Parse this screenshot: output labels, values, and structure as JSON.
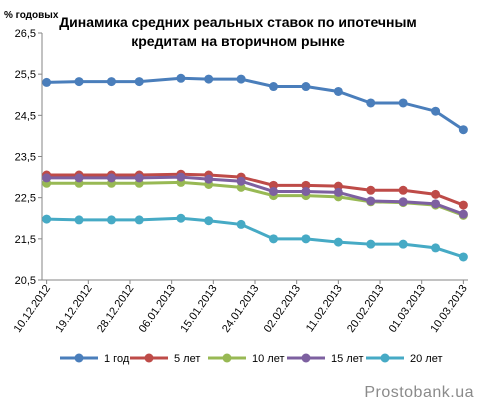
{
  "chart_data": {
    "type": "line",
    "title": [
      "Динамика средних реальных ставок по ипотечным",
      "кредитам на вторичном рынке"
    ],
    "y_label": "% годовых",
    "watermark": "Prostobank.ua",
    "x": [
      0,
      7,
      14,
      20,
      29,
      35,
      42,
      49,
      56,
      63,
      70,
      77,
      84,
      90
    ],
    "xlim": [
      -1,
      91
    ],
    "xticks": [
      {
        "value": 0,
        "label": "10.12.2012"
      },
      {
        "value": 9,
        "label": "19.12.2012"
      },
      {
        "value": 18,
        "label": "28.12.2012"
      },
      {
        "value": 27,
        "label": "06.01.2013"
      },
      {
        "value": 36,
        "label": "15.01.2013"
      },
      {
        "value": 45,
        "label": "24.01.2013"
      },
      {
        "value": 54,
        "label": "02.02.2013"
      },
      {
        "value": 63,
        "label": "11.02.2013"
      },
      {
        "value": 72,
        "label": "20.02.2013"
      },
      {
        "value": 81,
        "label": "01.03.2013"
      },
      {
        "value": 90,
        "label": "10.03.2013"
      }
    ],
    "ylim": [
      20.5,
      26.5
    ],
    "yticks": [
      {
        "value": 20.5,
        "label": "20,5"
      },
      {
        "value": 21.5,
        "label": "21,5"
      },
      {
        "value": 22.5,
        "label": "22,5"
      },
      {
        "value": 23.5,
        "label": "23,5"
      },
      {
        "value": 24.5,
        "label": "24,5"
      },
      {
        "value": 25.5,
        "label": "25,5"
      },
      {
        "value": 26.5,
        "label": "26,5"
      }
    ],
    "grid": false,
    "legend": "bottom",
    "series": [
      {
        "name": "1 год",
        "color": "#4a7ebb",
        "values": [
          25.3,
          25.32,
          25.32,
          25.32,
          25.4,
          25.38,
          25.38,
          25.2,
          25.2,
          25.08,
          24.8,
          24.8,
          24.6,
          24.15
        ]
      },
      {
        "name": "5 лет",
        "color": "#be4b48",
        "values": [
          23.05,
          23.05,
          23.05,
          23.05,
          23.07,
          23.05,
          23.0,
          22.8,
          22.8,
          22.78,
          22.68,
          22.68,
          22.58,
          22.32
        ]
      },
      {
        "name": "10 лет",
        "color": "#98b954",
        "values": [
          22.85,
          22.85,
          22.85,
          22.85,
          22.87,
          22.82,
          22.75,
          22.55,
          22.55,
          22.52,
          22.4,
          22.38,
          22.32,
          22.07
        ]
      },
      {
        "name": "15 лет",
        "color": "#7d60a0",
        "values": [
          22.98,
          22.98,
          22.98,
          22.98,
          23.0,
          22.95,
          22.9,
          22.65,
          22.65,
          22.63,
          22.42,
          22.4,
          22.35,
          22.1
        ]
      },
      {
        "name": "20 лет",
        "color": "#46aac5",
        "values": [
          21.98,
          21.96,
          21.96,
          21.96,
          22.0,
          21.94,
          21.85,
          21.5,
          21.5,
          21.42,
          21.37,
          21.37,
          21.28,
          21.06
        ]
      }
    ]
  }
}
